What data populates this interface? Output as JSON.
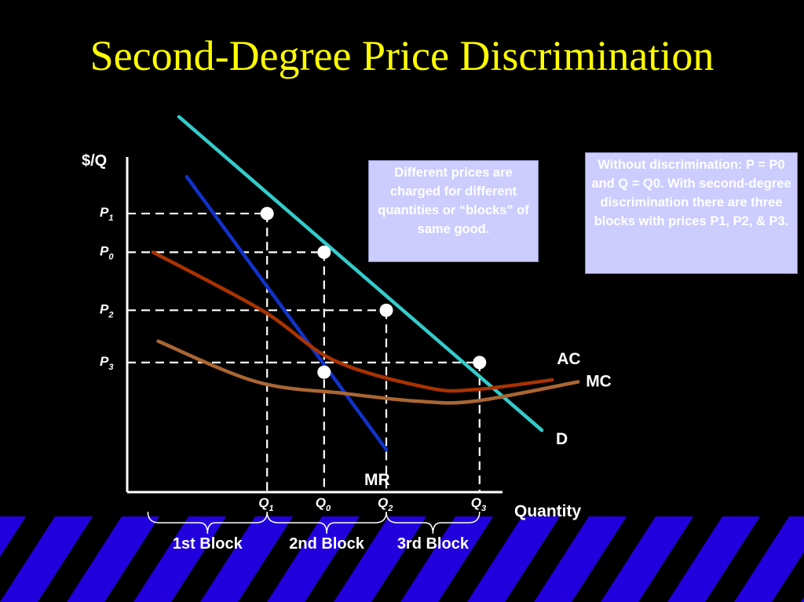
{
  "title": "Second-Degree Price Discrimination",
  "notes": {
    "left": "Different prices are charged for different quantities or “blocks” of same good.",
    "right": "Without discrimination: P = P0 and Q = Q0.  With second-degree discrimination there are three blocks with prices P1, P2, & P3."
  },
  "colors": {
    "background": "#000000",
    "title": "#ffff00",
    "demand": "#33cccc",
    "mr": "#1133cc",
    "ac": "#aa3300",
    "mc": "#aa6633",
    "note_bg": "#ccccff",
    "stripe": "#2200dd"
  },
  "chart_data": {
    "type": "line",
    "xlabel": "Quantity",
    "ylabel": "$/Q",
    "grid": false,
    "series": [
      {
        "name": "D",
        "points": [
          [
            1.0,
            9.7
          ],
          [
            8.0,
            1.6
          ]
        ]
      },
      {
        "name": "MR",
        "points": [
          [
            1.15,
            8.15
          ],
          [
            5.0,
            1.1
          ]
        ]
      },
      {
        "name": "AC",
        "points": [
          [
            0.5,
            6.2
          ],
          [
            2.6,
            4.7
          ],
          [
            4.0,
            3.4
          ],
          [
            5.8,
            2.7
          ],
          [
            6.7,
            2.65
          ],
          [
            8.2,
            2.9
          ]
        ]
      },
      {
        "name": "MC",
        "points": [
          [
            0.6,
            3.9
          ],
          [
            2.5,
            2.85
          ],
          [
            4.2,
            2.55
          ],
          [
            5.6,
            2.35
          ],
          [
            6.7,
            2.35
          ],
          [
            8.7,
            2.85
          ]
        ]
      }
    ],
    "y_ticks": [
      {
        "label": "P",
        "sub": "1",
        "value": 7.2
      },
      {
        "label": "P",
        "sub": "0",
        "value": 6.2
      },
      {
        "label": "P",
        "sub": "2",
        "value": 4.7
      },
      {
        "label": "P",
        "sub": "3",
        "value": 3.35
      }
    ],
    "x_ticks": [
      {
        "label": "Q",
        "sub": "1",
        "value": 2.7
      },
      {
        "label": "Q",
        "sub": "0",
        "value": 3.8
      },
      {
        "label": "Q",
        "sub": "2",
        "value": 5.0
      },
      {
        "label": "Q",
        "sub": "3",
        "value": 6.8
      }
    ],
    "points": [
      {
        "x": 2.7,
        "y": 7.2
      },
      {
        "x": 3.8,
        "y": 6.2
      },
      {
        "x": 5.0,
        "y": 4.7
      },
      {
        "x": 6.8,
        "y": 3.35
      },
      {
        "x": 3.8,
        "y": 3.1
      }
    ],
    "blocks": [
      {
        "label": "1st Block",
        "from": 0.4,
        "to": 2.7
      },
      {
        "label": "2nd Block",
        "from": 2.7,
        "to": 5.0
      },
      {
        "label": "3rd Block",
        "from": 5.0,
        "to": 6.8
      }
    ],
    "xlim": [
      0,
      10
    ],
    "ylim": [
      0,
      8.5
    ]
  }
}
